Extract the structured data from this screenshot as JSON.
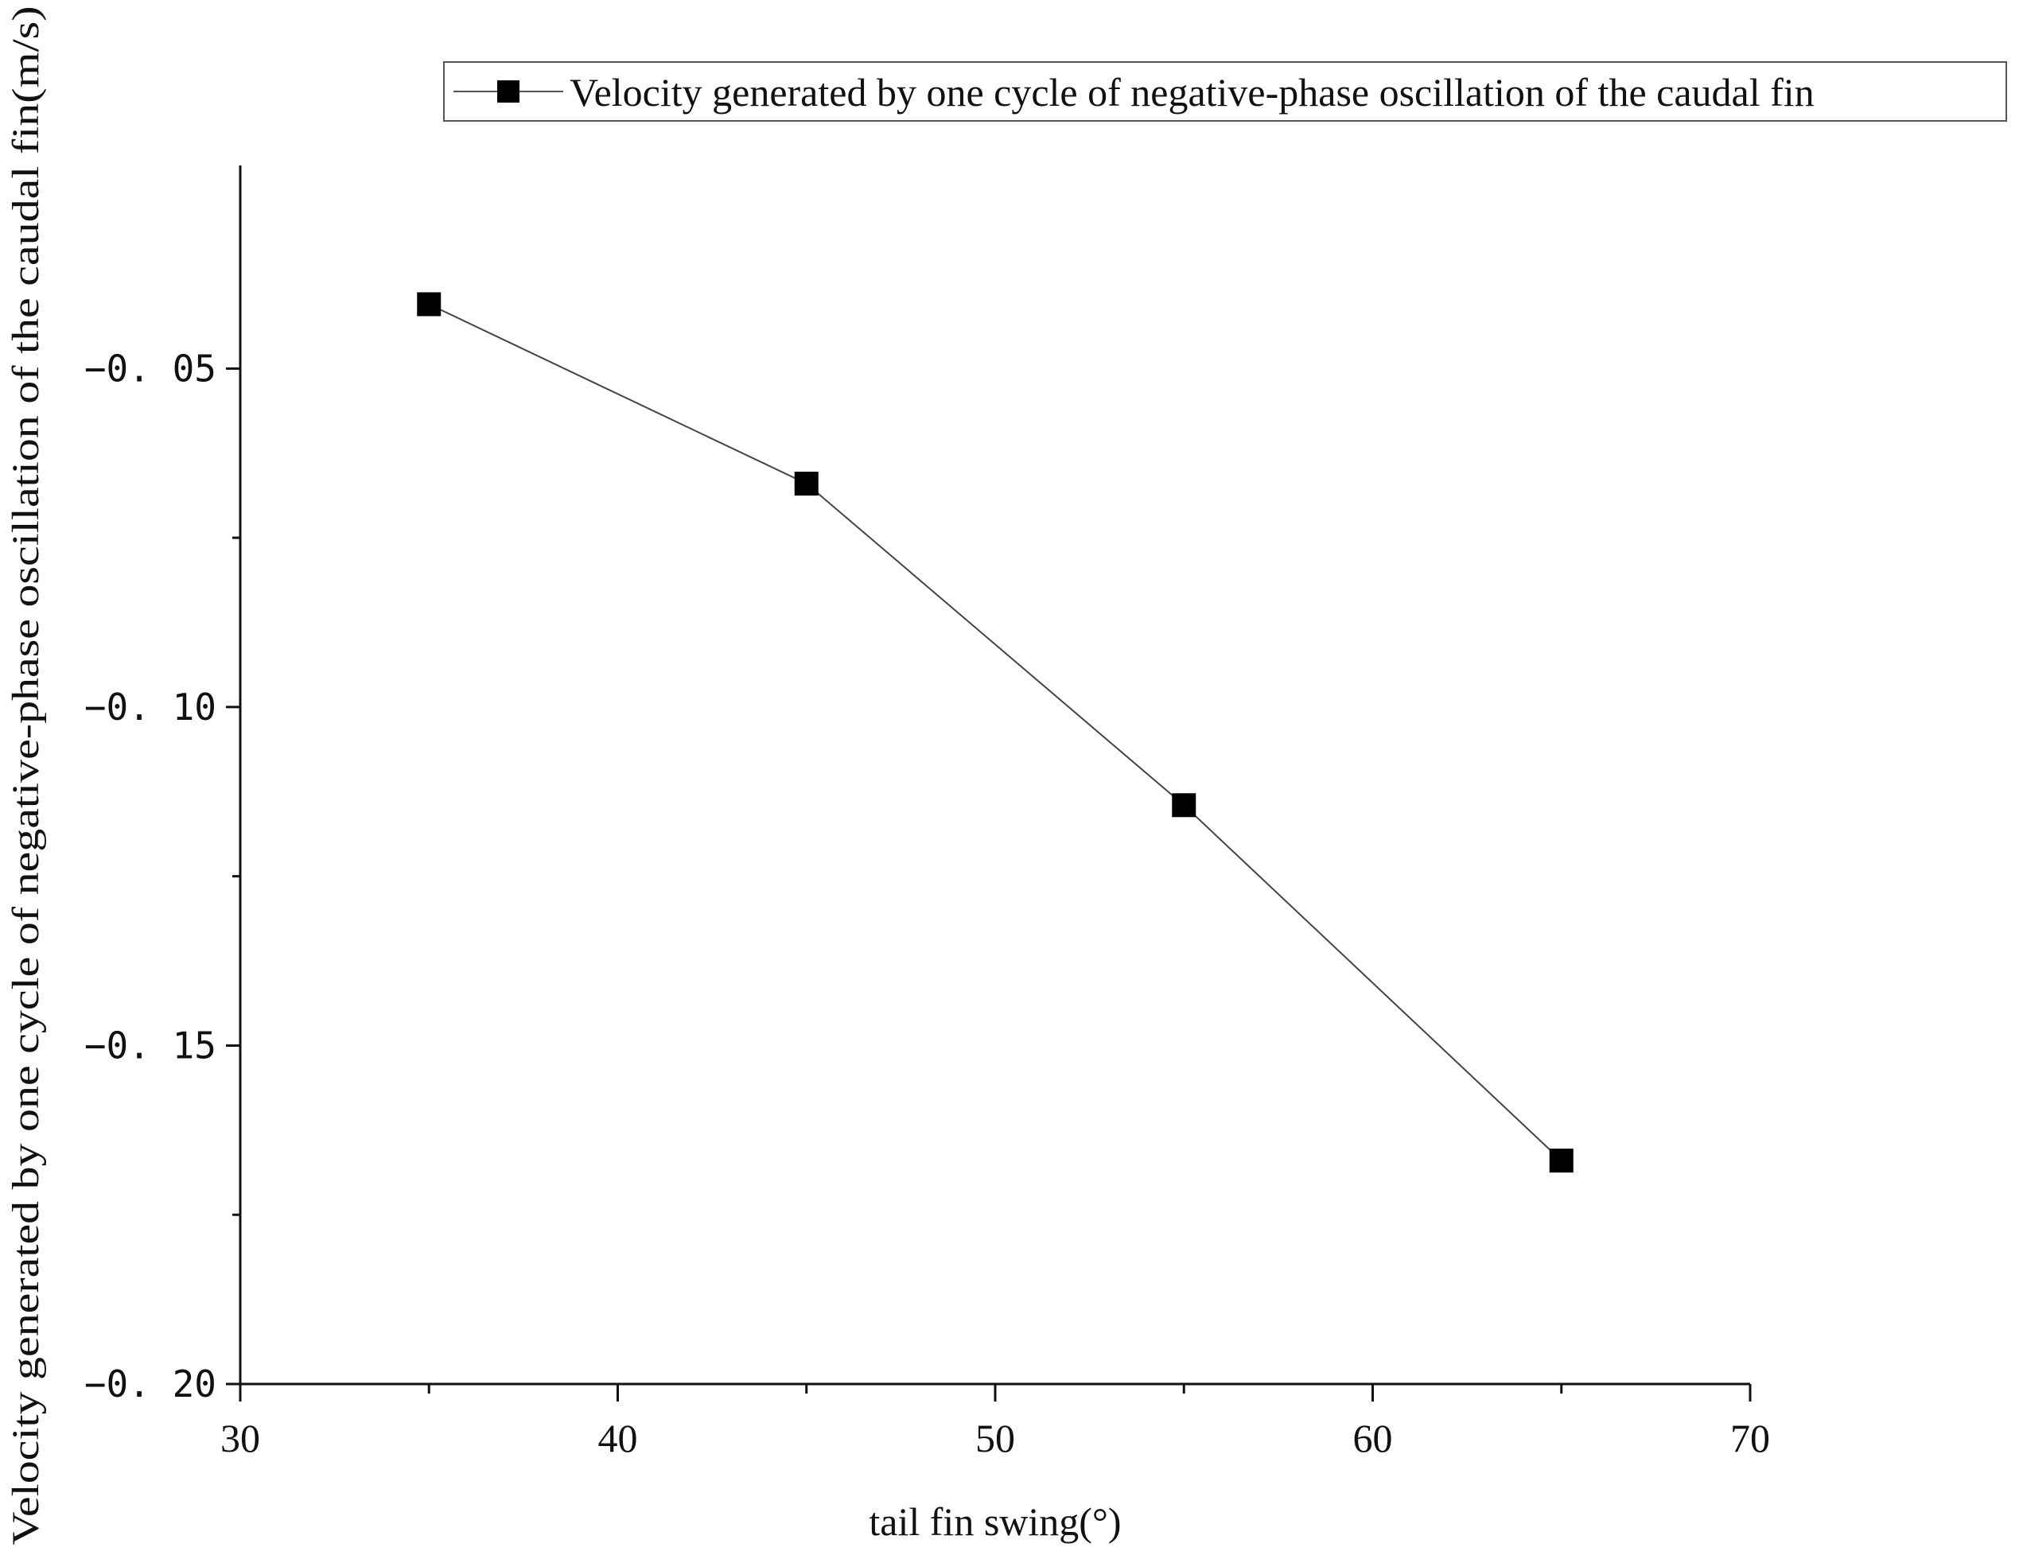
{
  "chart_data": {
    "type": "line",
    "title": "",
    "xlabel": "tail fin swing(°)",
    "ylabel": "Velocity generated by one cycle of negative-phase oscillation of the caudal fin(m/s)",
    "xlim": [
      30,
      70
    ],
    "ylim": [
      -0.2,
      -0.02
    ],
    "x_ticks": [
      30,
      40,
      50,
      60,
      70
    ],
    "x_tick_labels": [
      "30",
      "40",
      "50",
      "60",
      "70"
    ],
    "x_minor_ticks": [
      35,
      45,
      55,
      65
    ],
    "y_ticks": [
      -0.05,
      -0.1,
      -0.15,
      -0.2
    ],
    "y_tick_labels": [
      "−0. 05",
      "−0. 10",
      "−0. 15",
      "−0. 20"
    ],
    "y_minor_ticks": [
      -0.075,
      -0.125,
      -0.175
    ],
    "grid": false,
    "legend_position": "top-right",
    "series": [
      {
        "name": "Velocity generated by one cycle of negative-phase oscillation of the caudal fin",
        "marker": "square",
        "color": "#000000",
        "x": [
          35,
          45,
          55,
          65
        ],
        "values": [
          -0.0405,
          -0.067,
          -0.1145,
          -0.167
        ]
      }
    ]
  }
}
